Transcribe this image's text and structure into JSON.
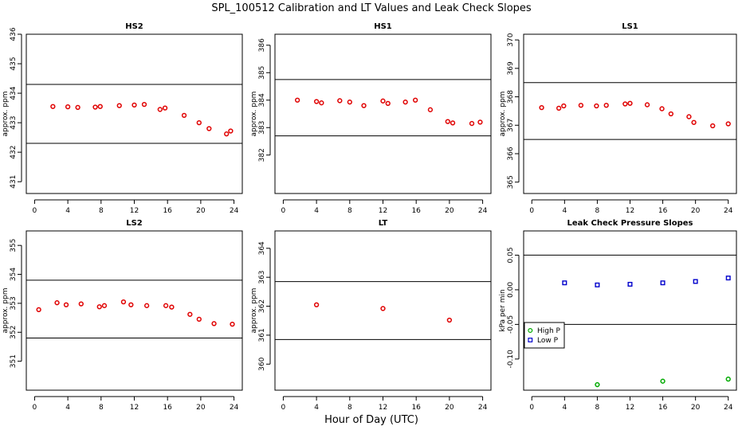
{
  "title": "SPL_100512  Calibration and LT Values and Leak Check Slopes",
  "xlabel": "Hour of Day (UTC)",
  "colors": {
    "red": "#e00000",
    "blue": "#0000cc",
    "green": "#00aa00",
    "axis": "#000000"
  },
  "chart_data": [
    {
      "type": "scatter",
      "title": "HS2",
      "ylabel": "approx. ppm",
      "xlim": [
        -1,
        25
      ],
      "ylim": [
        430.6,
        436.0
      ],
      "xticks": [
        0,
        4,
        8,
        12,
        16,
        20,
        24
      ],
      "yticks": [
        431,
        432,
        433,
        434,
        435,
        436
      ],
      "hlines": [
        432.3,
        434.3
      ],
      "series": [
        {
          "color": "red",
          "marker": "circle",
          "x": [
            2.2,
            4.0,
            5.2,
            7.3,
            7.9,
            10.2,
            12.0,
            13.2,
            15.1,
            15.7,
            18.0,
            19.8,
            21.0,
            23.1,
            23.6
          ],
          "y": [
            433.55,
            433.54,
            433.52,
            433.53,
            433.55,
            433.58,
            433.6,
            433.62,
            433.45,
            433.5,
            433.25,
            433.0,
            432.8,
            432.62,
            432.72
          ]
        }
      ]
    },
    {
      "type": "scatter",
      "title": "HS1",
      "ylabel": "approx. ppm",
      "xlim": [
        -1,
        25
      ],
      "ylim": [
        380.6,
        386.4
      ],
      "xticks": [
        0,
        4,
        8,
        12,
        16,
        20,
        24
      ],
      "yticks": [
        382,
        383,
        384,
        385,
        386
      ],
      "hlines": [
        382.7,
        384.75
      ],
      "series": [
        {
          "color": "red",
          "marker": "circle",
          "x": [
            1.7,
            4.0,
            4.6,
            6.8,
            8.0,
            9.7,
            12.0,
            12.6,
            14.7,
            15.9,
            17.7,
            19.8,
            20.4,
            22.7,
            23.7
          ],
          "y": [
            384.0,
            383.95,
            383.9,
            383.98,
            383.93,
            383.8,
            383.97,
            383.88,
            383.93,
            384.0,
            383.65,
            383.22,
            383.17,
            383.15,
            383.2
          ]
        }
      ]
    },
    {
      "type": "scatter",
      "title": "LS1",
      "ylabel": "approx. ppm",
      "xlim": [
        -1,
        25
      ],
      "ylim": [
        364.6,
        370.2
      ],
      "xticks": [
        0,
        4,
        8,
        12,
        16,
        20,
        24
      ],
      "yticks": [
        365,
        366,
        367,
        368,
        369,
        370
      ],
      "hlines": [
        366.5,
        368.5
      ],
      "series": [
        {
          "color": "red",
          "marker": "circle",
          "x": [
            1.2,
            3.3,
            3.9,
            6.0,
            7.9,
            9.1,
            11.4,
            12.0,
            14.1,
            15.9,
            17.0,
            19.2,
            19.8,
            22.1,
            24.0
          ],
          "y": [
            367.62,
            367.6,
            367.68,
            367.7,
            367.68,
            367.7,
            367.75,
            367.77,
            367.72,
            367.58,
            367.4,
            367.3,
            367.1,
            366.98,
            367.05
          ]
        }
      ]
    },
    {
      "type": "scatter",
      "title": "LS2",
      "ylabel": "approx. ppm",
      "xlim": [
        -1,
        25
      ],
      "ylim": [
        350.0,
        355.5
      ],
      "xticks": [
        0,
        4,
        8,
        12,
        16,
        20,
        24
      ],
      "yticks": [
        351,
        352,
        353,
        354,
        355
      ],
      "hlines": [
        351.8,
        353.8
      ],
      "series": [
        {
          "color": "red",
          "marker": "circle",
          "x": [
            0.5,
            2.7,
            3.8,
            5.6,
            7.8,
            8.4,
            10.7,
            11.6,
            13.5,
            15.8,
            16.5,
            18.7,
            19.8,
            21.6,
            23.8
          ],
          "y": [
            352.78,
            353.02,
            352.95,
            352.98,
            352.88,
            352.92,
            353.05,
            352.95,
            352.92,
            352.92,
            352.87,
            352.62,
            352.45,
            352.3,
            352.28
          ]
        }
      ]
    },
    {
      "type": "scatter",
      "title": "LT",
      "ylabel": "approx. ppm",
      "xlim": [
        -1,
        25
      ],
      "ylim": [
        359.1,
        364.6
      ],
      "xticks": [
        0,
        4,
        8,
        12,
        16,
        20,
        24
      ],
      "yticks": [
        360,
        361,
        362,
        363,
        364
      ],
      "hlines": [
        360.85,
        362.85
      ],
      "series": [
        {
          "color": "red",
          "marker": "circle",
          "x": [
            4.0,
            12.0,
            20.0
          ],
          "y": [
            362.05,
            361.92,
            361.52
          ]
        }
      ]
    },
    {
      "type": "scatter",
      "title": "Leak Check Pressure Slopes",
      "ylabel": "kPa per min",
      "xlim": [
        -1,
        25
      ],
      "ylim": [
        -0.145,
        0.085
      ],
      "xticks": [
        0,
        4,
        8,
        12,
        16,
        20,
        24
      ],
      "yticks": [
        -0.1,
        -0.05,
        0.0,
        0.05
      ],
      "ytick_labels": [
        "-0.10",
        "-0.05",
        "0.00",
        "0.05"
      ],
      "hlines": [
        -0.05,
        0.05
      ],
      "legend": {
        "position": "bottom-left",
        "entries": [
          "High P",
          "Low P"
        ]
      },
      "series": [
        {
          "name": "High P",
          "color": "green",
          "marker": "circle",
          "x": [
            8.0,
            16.0,
            24.0
          ],
          "y": [
            -0.137,
            -0.132,
            -0.129
          ]
        },
        {
          "name": "Low P",
          "color": "blue",
          "marker": "square",
          "x": [
            4.0,
            8.0,
            12.0,
            16.0,
            20.0,
            24.0
          ],
          "y": [
            0.01,
            0.007,
            0.008,
            0.01,
            0.012,
            0.017
          ]
        }
      ]
    }
  ]
}
